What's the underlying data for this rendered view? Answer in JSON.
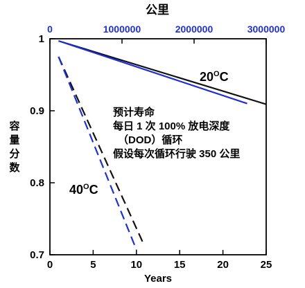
{
  "chart_data": {
    "type": "line",
    "x_top_label": "公里",
    "x_top_ticks": [
      "0",
      "1000000",
      "2000000",
      "3000000"
    ],
    "x_top_tick_values": [
      0,
      1000000,
      2000000,
      3000000
    ],
    "x_top_lim": [
      0,
      3000000
    ],
    "x_bottom_label": "Years",
    "x_bottom_ticks": [
      "0",
      "5",
      "10",
      "15",
      "20",
      "25"
    ],
    "x_bottom_tick_values": [
      0,
      5,
      10,
      15,
      20,
      25
    ],
    "xlim": [
      0,
      25
    ],
    "ylabel": "容量分数",
    "ylabel_chars": [
      "容",
      "量",
      "分",
      "数"
    ],
    "y_ticks": [
      "0.7",
      "0.8",
      "0.9",
      "1"
    ],
    "y_tick_values": [
      0.7,
      0.8,
      0.9,
      1.0
    ],
    "ylim": [
      0.7,
      1.0
    ],
    "grid": false,
    "annotation_lines": [
      "预计寿命",
      "每日 1 次 100% 放电深度",
      "（DOD）循环",
      "假设每次循环行驶 350 公里"
    ],
    "temp_label_20": {
      "num": "20",
      "sup": "O",
      "unit": "C"
    },
    "temp_label_40": {
      "num": "40",
      "sup": "O",
      "unit": "C"
    },
    "colors": {
      "black": "#111111",
      "blue": "#1f2fd6",
      "axis": "#000000"
    },
    "series": [
      {
        "axis": "bottom",
        "style": "solid",
        "color": "black",
        "x": [
          1.0,
          25.0
        ],
        "y": [
          0.997,
          0.909
        ]
      },
      {
        "axis": "bottom",
        "style": "solid",
        "color": "blue",
        "x": [
          1.0,
          22.8
        ],
        "y": [
          0.997,
          0.91
        ]
      },
      {
        "axis": "bottom",
        "style": "dashed",
        "color": "black",
        "x": [
          1.0,
          10.9
        ],
        "y": [
          0.975,
          0.713
        ]
      },
      {
        "axis": "bottom",
        "style": "dashed",
        "color": "blue",
        "x": [
          1.0,
          10.0
        ],
        "y": [
          0.975,
          0.707
        ]
      }
    ]
  }
}
